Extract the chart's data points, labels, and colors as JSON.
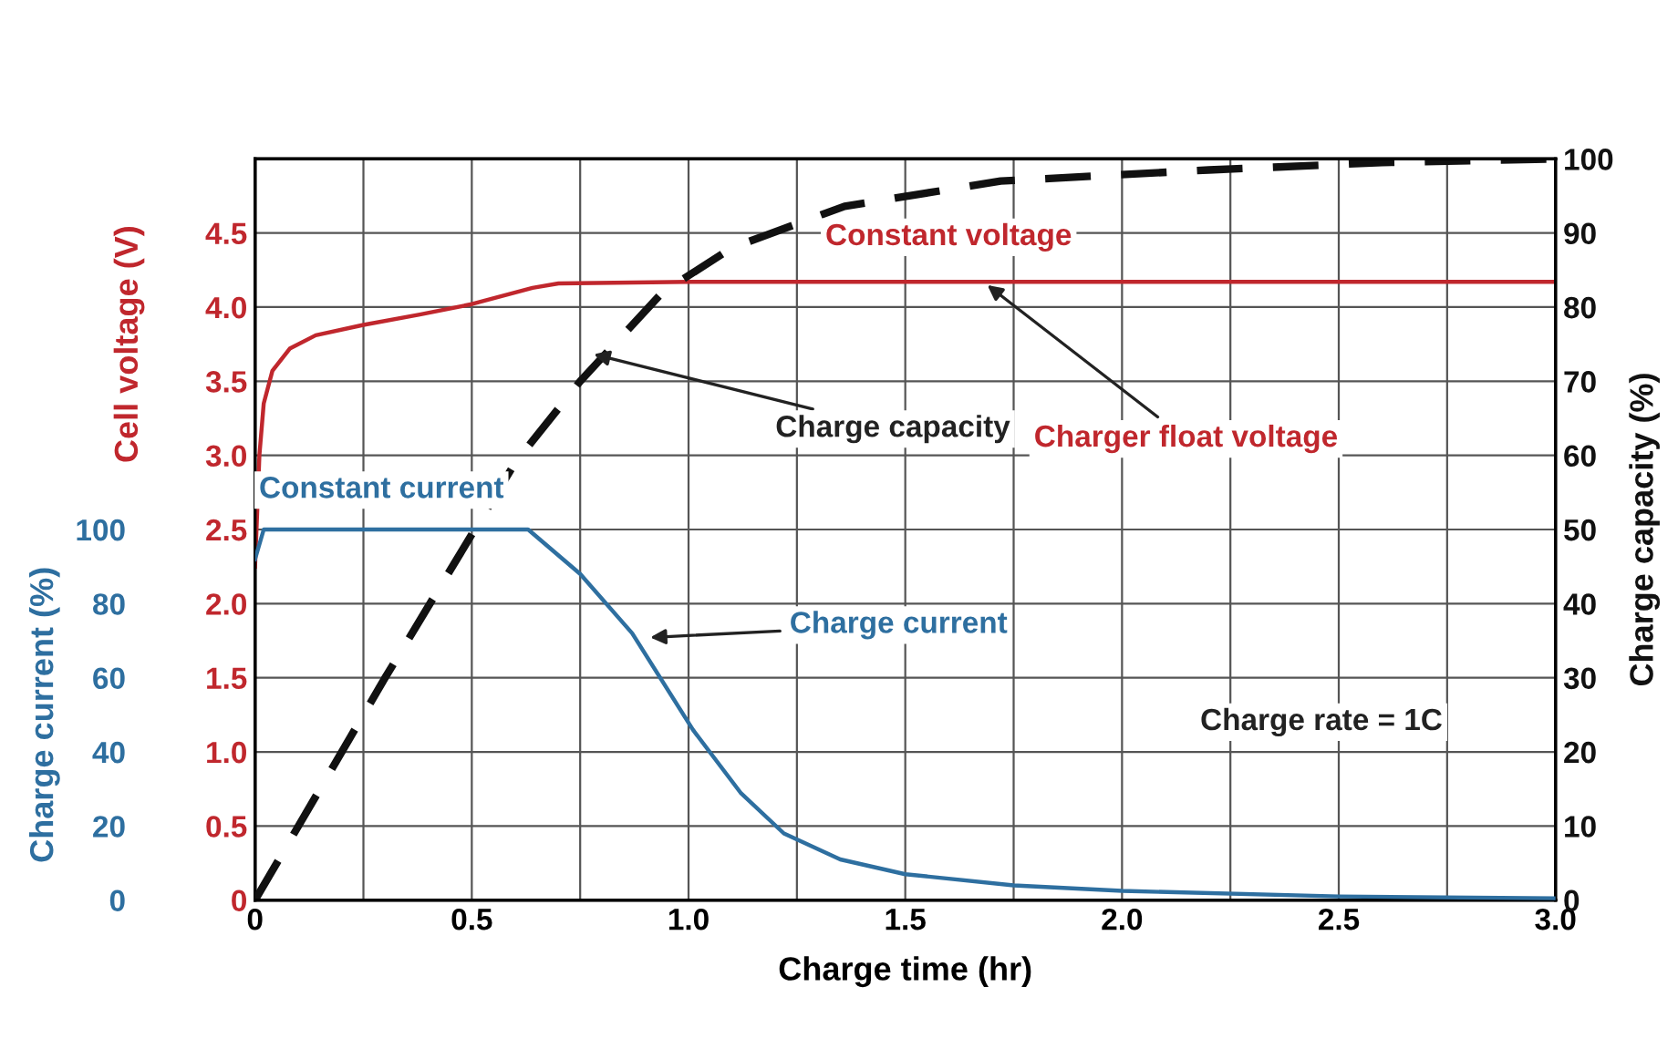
{
  "chart_data": {
    "type": "line",
    "xlabel": "Charge time (hr)",
    "ylabel": "Cell voltage (V)",
    "y2label": "Charge capacity (%)",
    "y3label": "Charge current (%)",
    "xlim": [
      0,
      3.0
    ],
    "xticks": [
      0,
      0.5,
      {
        "value": 1,
        "label": "1.0"
      },
      1.5,
      {
        "value": 2,
        "label": "2.0"
      },
      2.5,
      {
        "value": 3,
        "label": "3.0"
      }
    ],
    "ylim": [
      0,
      5.0
    ],
    "yticks": [
      0,
      0.5,
      {
        "value": 1,
        "label": "1.0"
      },
      1.5,
      {
        "value": 2,
        "label": "2.0"
      },
      2.5,
      {
        "value": 3,
        "label": "3.0"
      },
      3.5,
      {
        "value": 4,
        "label": "4.0"
      },
      4.5
    ],
    "y2lim": [
      0,
      100
    ],
    "y2ticks": [
      0,
      10,
      20,
      30,
      40,
      50,
      60,
      70,
      80,
      90,
      100
    ],
    "y3lim": [
      0,
      200
    ],
    "y3ticks": [
      0,
      20,
      40,
      60,
      80,
      100
    ],
    "grid": true,
    "marker": "none",
    "series": [
      {
        "color": "#c0272d",
        "line_style": "solid",
        "x": [
          0,
          0.01,
          0.02,
          0.04,
          0.08,
          0.14,
          0.25,
          0.38,
          0.5,
          0.64,
          0.7,
          1.0,
          2.0,
          3.0
        ],
        "values": [
          2.25,
          3.0,
          3.35,
          3.57,
          3.72,
          3.81,
          3.88,
          3.95,
          4.02,
          4.13,
          4.16,
          4.17,
          4.17,
          4.17
        ]
      },
      {
        "color": "#2e6fa0",
        "axis": "y3",
        "line_style": "solid",
        "x": [
          0,
          0.02,
          0.63,
          0.75,
          0.87,
          1.01,
          1.12,
          1.22,
          1.35,
          1.5,
          1.75,
          2.0,
          2.5,
          3.0
        ],
        "values": [
          92,
          100,
          100,
          88,
          72,
          46,
          29,
          18,
          11,
          7,
          4,
          2.5,
          1,
          0.5
        ]
      },
      {
        "color": "#111111",
        "axis": "y2",
        "line_style": "dashed",
        "x": [
          0,
          0.3,
          0.6,
          0.75,
          0.94,
          1.1,
          1.36,
          1.72,
          2.2,
          2.6,
          3.0
        ],
        "values": [
          0,
          30,
          59,
          70,
          82,
          88,
          93.6,
          97,
          98.5,
          99.5,
          100
        ]
      }
    ],
    "annotations": [
      {
        "text": "Constant voltage",
        "x": 1.6,
        "y": 4.17
      },
      {
        "text": "Charger float voltage",
        "x": 1.68,
        "y": 4.17
      },
      {
        "text": "Charge capacity",
        "x": 0.77,
        "y": 3.69
      },
      {
        "text": "Constant current",
        "x": 0.35,
        "y": 2.5
      },
      {
        "text": "Charge current",
        "x": 0.9,
        "y": 1.77
      },
      "Charge rate = 1C"
    ]
  }
}
